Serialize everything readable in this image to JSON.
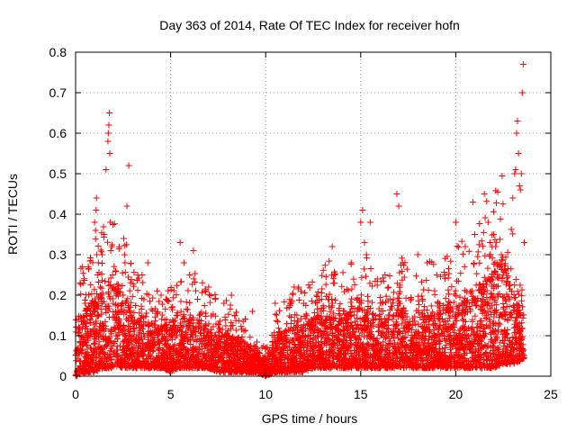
{
  "chart_data": {
    "type": "scatter",
    "title": "Day 363 of 2014, Rate Of TEC Index for receiver hofn",
    "xlabel": "GPS time / hours",
    "ylabel": "ROTI / TECUs",
    "xlim": [
      0,
      25
    ],
    "ylim": [
      0,
      0.8
    ],
    "xticks": [
      0,
      5,
      10,
      15,
      20,
      25
    ],
    "yticks": [
      0,
      0.1,
      0.2,
      0.3,
      0.4,
      0.5,
      0.6,
      0.7,
      0.8
    ],
    "xtick_labels": [
      "0",
      "5",
      "10",
      "15",
      "20",
      "25"
    ],
    "ytick_labels": [
      "0",
      "0.1",
      "0.2",
      "0.3",
      "0.4",
      "0.5",
      "0.6",
      "0.7",
      "0.8"
    ],
    "grid": true,
    "marker": "+",
    "color": "#ff0000",
    "series": [
      {
        "name": "ROTI",
        "x": [
          1.05,
          1.08,
          1.0,
          1.1,
          1.12,
          1.15,
          1.2,
          1.3,
          1.35,
          1.4,
          1.5,
          1.6,
          1.7,
          1.72,
          1.75,
          1.78,
          1.8,
          1.82,
          1.85,
          1.9,
          1.95,
          2.0,
          2.1,
          2.6,
          2.7,
          2.8,
          3.5,
          3.8,
          4.5,
          5.5,
          5.7,
          6.0,
          6.2,
          7.0,
          7.8,
          8.2,
          9.3,
          10.5,
          11.5,
          12.0,
          13.5,
          14.5,
          15.0,
          15.1,
          15.2,
          15.3,
          15.5,
          16.9,
          17.0,
          17.2,
          18.0,
          18.5,
          19.0,
          20.0,
          20.5,
          20.9,
          21.0,
          21.5,
          21.7,
          21.8,
          22.0,
          22.1,
          22.4,
          23.0,
          23.1,
          23.15,
          23.2,
          23.25,
          23.3,
          23.35,
          23.4,
          23.45,
          23.5,
          23.55,
          23.6
        ],
        "y": [
          0.36,
          0.41,
          0.38,
          0.44,
          0.3,
          0.25,
          0.28,
          0.22,
          0.2,
          0.3,
          0.35,
          0.51,
          0.58,
          0.6,
          0.62,
          0.65,
          0.55,
          0.38,
          0.31,
          0.32,
          0.25,
          0.22,
          0.26,
          0.28,
          0.42,
          0.52,
          0.25,
          0.28,
          0.2,
          0.33,
          0.28,
          0.25,
          0.31,
          0.22,
          0.18,
          0.2,
          0.16,
          0.18,
          0.22,
          0.18,
          0.32,
          0.28,
          0.38,
          0.41,
          0.33,
          0.3,
          0.38,
          0.45,
          0.42,
          0.28,
          0.3,
          0.28,
          0.25,
          0.38,
          0.32,
          0.43,
          0.35,
          0.45,
          0.38,
          0.33,
          0.35,
          0.32,
          0.3,
          0.44,
          0.5,
          0.51,
          0.6,
          0.63,
          0.55,
          0.47,
          0.46,
          0.5,
          0.7,
          0.77,
          0.33
        ]
      }
    ],
    "density_profile": {
      "x": [
        0,
        0.5,
        1,
        1.5,
        2,
        2.5,
        3,
        3.5,
        4,
        4.5,
        5,
        5.5,
        6,
        6.5,
        7,
        7.5,
        8,
        8.5,
        9,
        9.5,
        10,
        10.5,
        11,
        11.5,
        12,
        12.5,
        13,
        13.5,
        14,
        14.5,
        15,
        15.5,
        16,
        16.5,
        17,
        17.5,
        18,
        18.5,
        19,
        19.5,
        20,
        20.5,
        21,
        21.5,
        22,
        22.5,
        23,
        23.5
      ],
      "low": [
        0.0,
        0.01,
        0.01,
        0.02,
        0.02,
        0.02,
        0.02,
        0.02,
        0.02,
        0.02,
        0.01,
        0.02,
        0.02,
        0.02,
        0.02,
        0.01,
        0.01,
        0.01,
        0.01,
        0.01,
        0.0,
        0.01,
        0.01,
        0.01,
        0.01,
        0.02,
        0.02,
        0.02,
        0.02,
        0.02,
        0.02,
        0.02,
        0.02,
        0.02,
        0.02,
        0.02,
        0.02,
        0.02,
        0.02,
        0.02,
        0.02,
        0.02,
        0.02,
        0.02,
        0.02,
        0.03,
        0.03,
        0.04
      ],
      "high": [
        0.12,
        0.16,
        0.18,
        0.2,
        0.22,
        0.2,
        0.14,
        0.13,
        0.12,
        0.12,
        0.12,
        0.13,
        0.14,
        0.13,
        0.12,
        0.1,
        0.1,
        0.09,
        0.08,
        0.05,
        0.04,
        0.08,
        0.11,
        0.12,
        0.12,
        0.14,
        0.15,
        0.16,
        0.15,
        0.15,
        0.16,
        0.16,
        0.14,
        0.14,
        0.16,
        0.15,
        0.14,
        0.15,
        0.15,
        0.16,
        0.17,
        0.18,
        0.2,
        0.22,
        0.25,
        0.28,
        0.2,
        0.15
      ]
    }
  }
}
